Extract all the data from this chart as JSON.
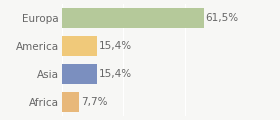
{
  "categories": [
    "Europa",
    "America",
    "Asia",
    "Africa"
  ],
  "values": [
    61.5,
    15.4,
    15.4,
    7.7
  ],
  "labels": [
    "61,5%",
    "15,4%",
    "15,4%",
    "7,7%"
  ],
  "colors": [
    "#b5c99a",
    "#f0c97a",
    "#7b8fbf",
    "#e8b87a"
  ],
  "xlim": [
    0,
    80
  ],
  "background_color": "#f7f7f5",
  "bar_height": 0.72,
  "label_fontsize": 7.5,
  "tick_fontsize": 7.5,
  "text_color": "#666666",
  "grid_lines": [
    0,
    26.67,
    53.33,
    80
  ],
  "grid_color": "#ffffff"
}
